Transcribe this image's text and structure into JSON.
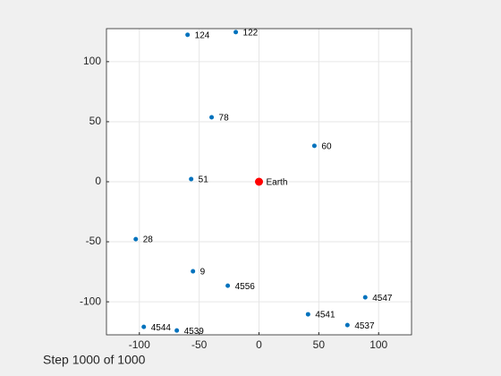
{
  "chart_data": {
    "type": "scatter",
    "caption": "Step 1000 of 1000",
    "xlim": [
      -127.5,
      127.5
    ],
    "ylim": [
      -127.5,
      127.5
    ],
    "xticks": [
      -100,
      -50,
      0,
      50,
      100
    ],
    "yticks": [
      -100,
      -50,
      0,
      50,
      100
    ],
    "grid": true,
    "series": [
      {
        "color": "#0072bd",
        "size": 2.5,
        "x": [
          -59.7,
          -19.4,
          -39.6,
          46.3,
          -56.7,
          -103,
          -55.2,
          -26.1,
          88.8,
          41,
          73.9,
          -96.3,
          -68.7
        ],
        "values": [
          122.4,
          124.6,
          53.7,
          29.9,
          2.2,
          -47.8,
          -74.6,
          -86.6,
          -96.3,
          -110.4,
          -119.4,
          -120.9,
          -123.9
        ],
        "labels": [
          "124",
          "122",
          "78",
          "60",
          "51",
          "28",
          "9",
          "4556",
          "4547",
          "4541",
          "4537",
          "4544",
          "4539"
        ]
      },
      {
        "color": "#ff0000",
        "size": 4.5,
        "x": [
          0
        ],
        "values": [
          0
        ],
        "labels": [
          "Earth"
        ]
      }
    ]
  }
}
